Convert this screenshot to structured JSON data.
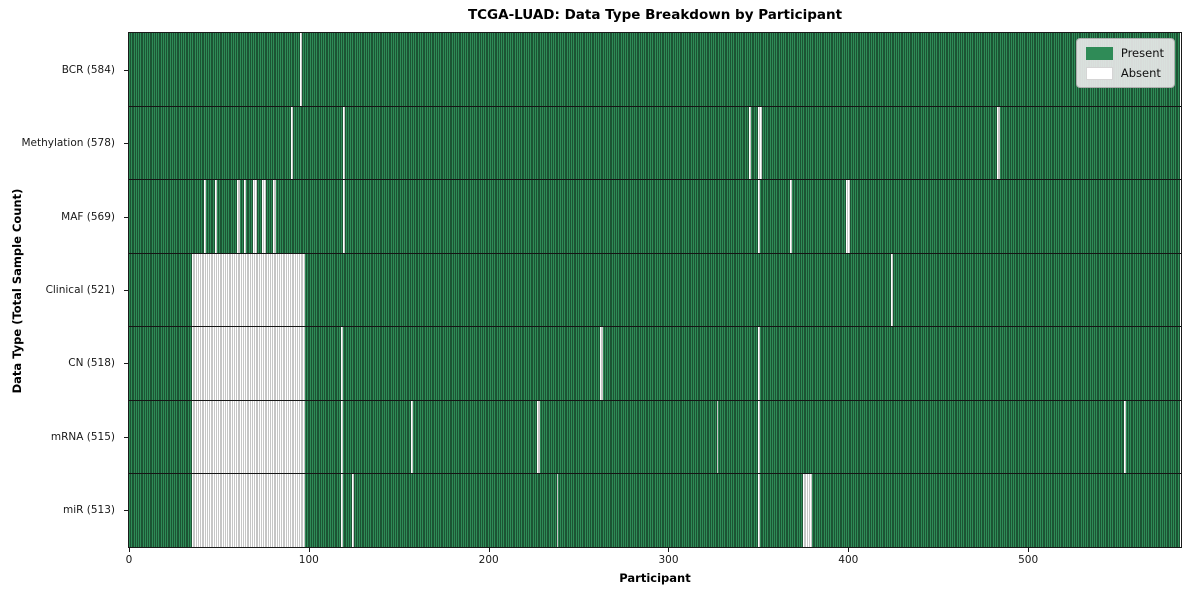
{
  "figure": {
    "title": "TCGA-LUAD: Data Type Breakdown by Participant",
    "xlabel": "Participant",
    "ylabel": "Data Type (Total Sample Count)"
  },
  "legend": {
    "items": [
      {
        "name": "present",
        "label": "Present",
        "color": "#2f8b57"
      },
      {
        "name": "absent",
        "label": "Absent",
        "color": "#ffffff"
      }
    ]
  },
  "chart_data": {
    "type": "heatmap",
    "title": "TCGA-LUAD: Data Type Breakdown by Participant",
    "xlabel": "Participant",
    "ylabel": "Data Type (Total Sample Count)",
    "legend_entries": [
      "Present",
      "Absent"
    ],
    "legend_position": "upper right",
    "total_participants": 585,
    "x_ticks": [
      0,
      100,
      200,
      300,
      400,
      500
    ],
    "colors": {
      "present": "#2f8b57",
      "present_edge": "#1c5434",
      "absent": "#ffffff",
      "absent_edge": "#c6c6c6",
      "row_separator": "#151515"
    },
    "rows": [
      {
        "name": "BCR",
        "count": 584,
        "label": "BCR (584)",
        "absent": [
          95
        ]
      },
      {
        "name": "Methylation",
        "count": 578,
        "label": "Methylation (578)",
        "absent": [
          90,
          119,
          345,
          350,
          351,
          483,
          484
        ]
      },
      {
        "name": "MAF",
        "count": 569,
        "label": "MAF (569)",
        "absent": [
          42,
          48,
          60,
          61,
          64,
          69,
          70,
          74,
          75,
          80,
          81,
          119,
          350,
          368,
          399,
          400
        ]
      },
      {
        "name": "Clinical",
        "count": 521,
        "label": "Clinical (521)",
        "absent": [
          [
            35,
            97
          ],
          424
        ]
      },
      {
        "name": "CN",
        "count": 518,
        "label": "CN (518)",
        "absent": [
          [
            35,
            97
          ],
          118,
          262,
          263,
          350
        ]
      },
      {
        "name": "mRNA",
        "count": 515,
        "label": "mRNA (515)",
        "absent": [
          [
            35,
            97
          ],
          118,
          157,
          227,
          228,
          327,
          350,
          554
        ]
      },
      {
        "name": "miR",
        "count": 513,
        "label": "miR (513)",
        "absent": [
          [
            35,
            97
          ],
          118,
          124,
          238,
          350,
          375,
          376,
          377,
          378,
          379
        ]
      }
    ]
  }
}
